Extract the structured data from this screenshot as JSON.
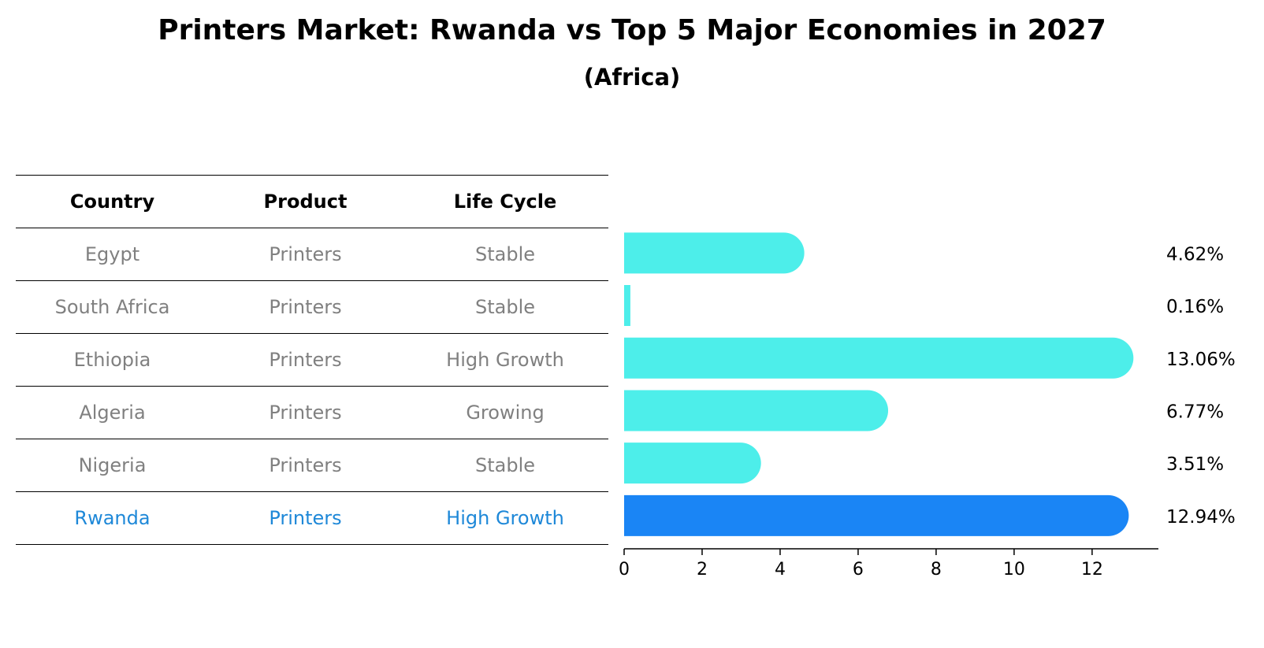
{
  "title": "Printers Market: Rwanda vs Top 5 Major Economies in 2027",
  "subtitle": "(Africa)",
  "table": {
    "headers": [
      "Country",
      "Product",
      "Life Cycle"
    ],
    "rows": [
      {
        "country": "Egypt",
        "product": "Printers",
        "life_cycle": "Stable"
      },
      {
        "country": "South Africa",
        "product": "Printers",
        "life_cycle": "Stable"
      },
      {
        "country": "Ethiopia",
        "product": "Printers",
        "life_cycle": "High Growth"
      },
      {
        "country": "Algeria",
        "product": "Printers",
        "life_cycle": "Growing"
      },
      {
        "country": "Nigeria",
        "product": "Printers",
        "life_cycle": "Stable"
      },
      {
        "country": "Rwanda",
        "product": "Printers",
        "life_cycle": "High Growth"
      }
    ]
  },
  "chart_data": {
    "type": "bar",
    "orientation": "horizontal",
    "title": "Printers Market: Rwanda vs Top 5 Major Economies in 2027",
    "subtitle": "(Africa)",
    "categories": [
      "Egypt",
      "South Africa",
      "Ethiopia",
      "Algeria",
      "Nigeria",
      "Rwanda"
    ],
    "values": [
      4.62,
      0.16,
      13.06,
      6.77,
      3.51,
      12.94
    ],
    "value_labels": [
      "4.62%",
      "0.16%",
      "13.06%",
      "6.77%",
      "3.51%",
      "12.94%"
    ],
    "highlight": "Rwanda",
    "xlim": [
      0,
      13.7
    ],
    "xticks": [
      0,
      2,
      4,
      6,
      8,
      10,
      12
    ],
    "xlabel": "",
    "ylabel": "",
    "grid": false,
    "colors": {
      "bar": "#4deeea",
      "highlight": "#1a85f5"
    }
  }
}
